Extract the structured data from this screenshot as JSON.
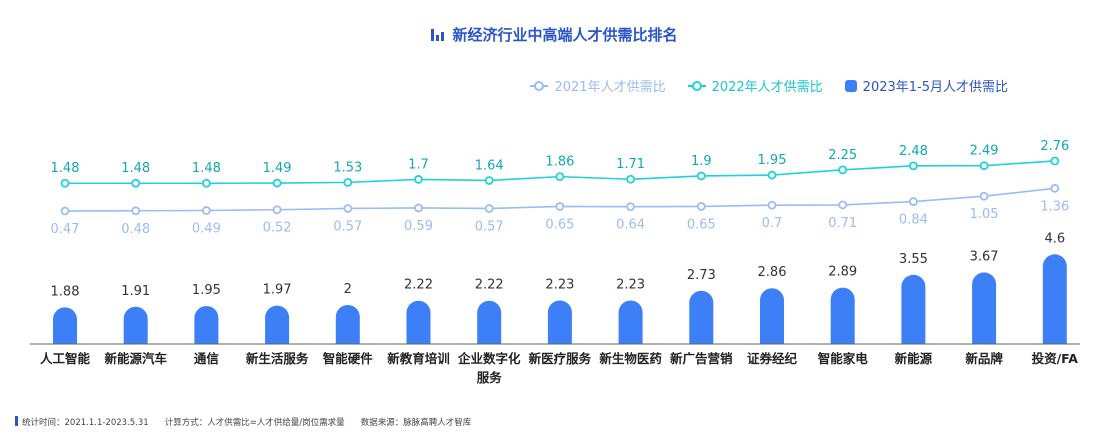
{
  "title": "新经济行业中高端人才供需比排名",
  "colors": {
    "s2021": "#9bbcf4",
    "s2022": "#1fd1dc",
    "s2023": "#3d7ff6",
    "title": "#2a56c6"
  },
  "footer": {
    "period": "统计时间：2021.1.1-2023.5.31",
    "method": "计算方式：人才供需比=人才供给量/岗位需求量",
    "source": "数据来源：脉脉高聘人才智库"
  },
  "chart_data": {
    "type": "bar",
    "categories": [
      "人工智能",
      "新能源汽车",
      "通信",
      "新生活服务",
      "智能硬件",
      "新教育培训",
      "企业数字化服务",
      "新医疗服务",
      "新生物医药",
      "新广告营销",
      "证券经纪",
      "智能家电",
      "新能源",
      "新品牌",
      "投资/FA"
    ],
    "category_lines": [
      [
        "人工智能"
      ],
      [
        "新能源汽车"
      ],
      [
        "通信"
      ],
      [
        "新生活服务"
      ],
      [
        "智能硬件"
      ],
      [
        "新教育培训"
      ],
      [
        "企业数字化",
        "服务"
      ],
      [
        "新医疗服务"
      ],
      [
        "新生物医药"
      ],
      [
        "新广告营销"
      ],
      [
        "证券经纪"
      ],
      [
        "智能家电"
      ],
      [
        "新能源"
      ],
      [
        "新品牌"
      ],
      [
        "投资/FA"
      ]
    ],
    "series": [
      {
        "name": "2021年人才供需比",
        "type": "line",
        "values": [
          0.47,
          0.48,
          0.49,
          0.52,
          0.57,
          0.59,
          0.57,
          0.65,
          0.64,
          0.65,
          0.7,
          0.71,
          0.84,
          1.05,
          1.36
        ]
      },
      {
        "name": "2022年人才供需比",
        "type": "line",
        "values": [
          1.48,
          1.48,
          1.48,
          1.49,
          1.53,
          1.7,
          1.64,
          1.86,
          1.71,
          1.9,
          1.95,
          2.25,
          2.48,
          2.49,
          2.76
        ]
      },
      {
        "name": "2023年1-5月人才供需比",
        "type": "bar",
        "values": [
          1.88,
          1.91,
          1.95,
          1.97,
          2,
          2.22,
          2.22,
          2.23,
          2.23,
          2.73,
          2.86,
          2.89,
          3.55,
          3.67,
          4.6
        ]
      }
    ],
    "legend_position": "top-right",
    "grid": false
  }
}
